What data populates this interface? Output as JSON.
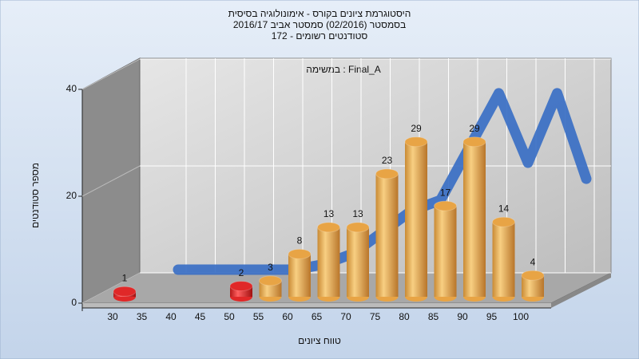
{
  "chart_data": {
    "type": "bar3d",
    "title": [
      "היסטוגרמת ציונים בקורס - אימונולוגיה בסיסית",
      "בסמסטר  (02/2016)  סמסטר אביב 2016/17",
      "סטודנטים רשומים - 172"
    ],
    "subtitle": "במשימה : Final_A",
    "y_label": "מספר סטודנטים",
    "x_label": "טווח ציונים",
    "categories": [
      "30",
      "35",
      "40",
      "45",
      "50",
      "55",
      "60",
      "65",
      "70",
      "75",
      "80",
      "85",
      "90",
      "95",
      "100"
    ],
    "values": [
      1,
      null,
      null,
      null,
      2,
      3,
      8,
      13,
      13,
      23,
      29,
      17,
      29,
      14,
      4
    ],
    "colors": [
      "#e02828",
      null,
      null,
      null,
      "#e02828",
      "#e8a445",
      "#e8a445",
      "#e8a445",
      "#e8a445",
      "#e8a445",
      "#e8a445",
      "#e8a445",
      "#e8a445",
      "#e8a445",
      "#e8a445"
    ],
    "curve": {
      "color": "#3a6fc4",
      "values": [
        0,
        0,
        0,
        0,
        0,
        1,
        3,
        7,
        11,
        13,
        23,
        33,
        20,
        33,
        17
      ]
    },
    "ylim": [
      0,
      40
    ],
    "yticks": [
      0,
      20,
      40
    ],
    "grid": true
  }
}
